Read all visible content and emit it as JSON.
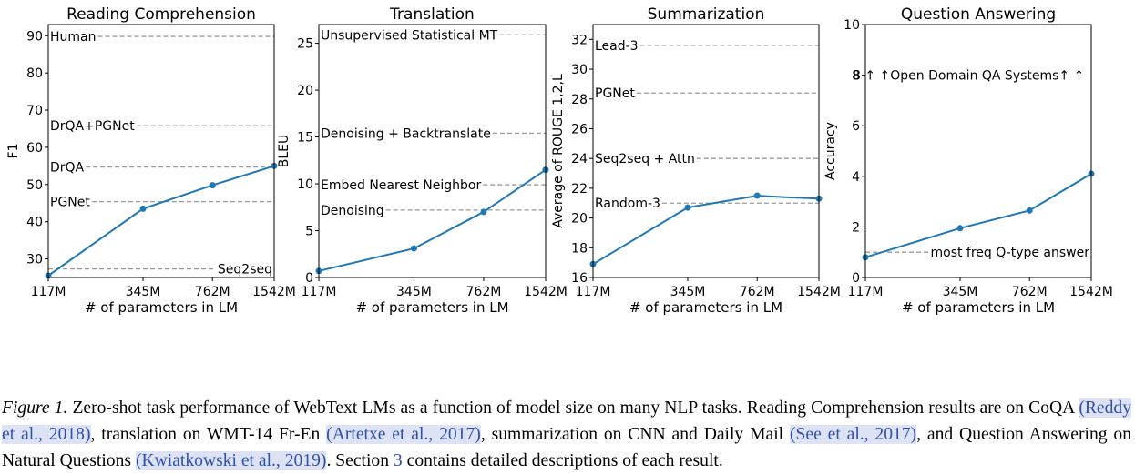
{
  "colors": {
    "line": "#1f77b4",
    "baseline": "#999999",
    "frame": "#000000"
  },
  "chart_data": [
    {
      "type": "line",
      "title": "Reading Comprehension",
      "xlabel": "# of parameters in LM",
      "ylabel": "F1",
      "x_scale": "log",
      "x": [
        117,
        345,
        762,
        1542
      ],
      "x_tick_labels": [
        "117M",
        "345M",
        "762M",
        "1542M"
      ],
      "xlim": [
        117,
        1542
      ],
      "ylim": [
        25,
        93
      ],
      "y_ticks": [
        30,
        40,
        50,
        60,
        70,
        80,
        90
      ],
      "values": [
        25.5,
        43.5,
        49.8,
        55.0
      ],
      "baselines": [
        {
          "label": "Human",
          "value": 89.8,
          "label_side": "left"
        },
        {
          "label": "DrQA+PGNet",
          "value": 65.8,
          "label_side": "left"
        },
        {
          "label": "DrQA",
          "value": 54.7,
          "label_side": "left"
        },
        {
          "label": "PGNet",
          "value": 45.4,
          "label_side": "left"
        },
        {
          "label": "Seq2seq",
          "value": 27.3,
          "label_side": "right"
        }
      ]
    },
    {
      "type": "line",
      "title": "Translation",
      "xlabel": "# of parameters in LM",
      "ylabel": "BLEU",
      "x_scale": "log",
      "x": [
        117,
        345,
        762,
        1542
      ],
      "x_tick_labels": [
        "117M",
        "345M",
        "762M",
        "1542M"
      ],
      "xlim": [
        117,
        1542
      ],
      "ylim": [
        0,
        27
      ],
      "y_ticks": [
        0,
        5,
        10,
        15,
        20,
        25
      ],
      "values": [
        0.7,
        3.1,
        7.0,
        11.5
      ],
      "baselines": [
        {
          "label": "Unsupervised Statistical MT",
          "value": 25.9,
          "label_side": "left"
        },
        {
          "label": "Denoising + Backtranslate",
          "value": 15.4,
          "label_side": "left"
        },
        {
          "label": "Embed Nearest Neighbor",
          "value": 9.9,
          "label_side": "left"
        },
        {
          "label": "Denoising",
          "value": 7.2,
          "label_side": "left"
        }
      ]
    },
    {
      "type": "line",
      "title": "Summarization",
      "xlabel": "# of parameters in LM",
      "ylabel": "Average of ROUGE 1,2,L",
      "x_scale": "log",
      "x": [
        117,
        345,
        762,
        1050,
        1542
      ],
      "x_tick_labels": [
        "117M",
        "345M",
        "762M",
        "1542M"
      ],
      "xlim": [
        117,
        1542
      ],
      "ylim": [
        16,
        33
      ],
      "y_ticks": [
        16,
        18,
        20,
        22,
        24,
        26,
        28,
        30,
        32
      ],
      "values": [
        16.9,
        20.7,
        21.5,
        21.4,
        21.3
      ],
      "markers_at": [
        117,
        345,
        762,
        1542
      ],
      "baselines": [
        {
          "label": "Lead-3",
          "value": 31.6,
          "label_side": "left"
        },
        {
          "label": "PGNet",
          "value": 28.4,
          "label_side": "left"
        },
        {
          "label": "Seq2seq + Attn",
          "value": 24.0,
          "label_side": "left"
        },
        {
          "label": "Random-3",
          "value": 21.0,
          "label_side": "left"
        }
      ]
    },
    {
      "type": "line",
      "title": "Question Answering",
      "xlabel": "# of parameters in LM",
      "ylabel": "Accuracy",
      "x_scale": "log",
      "x": [
        117,
        345,
        762,
        1542
      ],
      "x_tick_labels": [
        "117M",
        "345M",
        "762M",
        "1542M"
      ],
      "xlim": [
        117,
        1542
      ],
      "ylim": [
        0,
        10
      ],
      "y_ticks": [
        0,
        2,
        4,
        6,
        8,
        10
      ],
      "values": [
        0.8,
        1.95,
        2.65,
        4.1
      ],
      "baselines": [
        {
          "label": "most freq Q-type answer",
          "value": 1.0,
          "label_side": "right"
        }
      ],
      "annotations": [
        {
          "text": "8 ↑ ↑Open Domain QA Systems↑ ↑",
          "y": 8.0
        }
      ]
    }
  ],
  "caption": {
    "label": "Figure 1.",
    "parts": [
      {
        "t": " Zero-shot task performance of WebText LMs as a function of model size on many NLP tasks. Reading Comprehension results are on CoQA ",
        "k": "text"
      },
      {
        "t": "(Reddy et al., 2018)",
        "k": "cite"
      },
      {
        "t": ", translation on WMT-14 Fr-En ",
        "k": "text"
      },
      {
        "t": "(Artetxe et al., 2017)",
        "k": "cite"
      },
      {
        "t": ", summarization on CNN and Daily Mail ",
        "k": "text"
      },
      {
        "t": "(See et al., 2017)",
        "k": "cite"
      },
      {
        "t": ", and Question Answering on Natural Questions ",
        "k": "text"
      },
      {
        "t": "(Kwiatkowski et al., 2019)",
        "k": "cite"
      },
      {
        "t": ". Section ",
        "k": "text"
      },
      {
        "t": "3",
        "k": "ref"
      },
      {
        "t": " contains detailed descriptions of each result.",
        "k": "text"
      }
    ]
  }
}
